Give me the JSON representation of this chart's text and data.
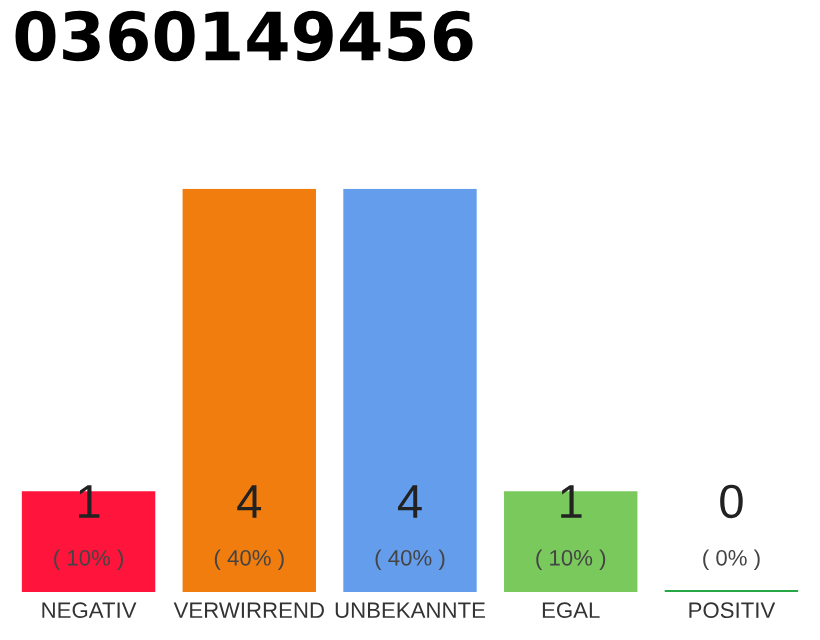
{
  "chart_data": {
    "type": "bar",
    "title": "0360149456",
    "categories": [
      "NEGATIV",
      "VERWIRREND",
      "UNBEKANNTE",
      "EGAL",
      "POSITIV"
    ],
    "values": [
      1,
      4,
      4,
      1,
      0
    ],
    "colors": [
      "#ff153c",
      "#f07d0e",
      "#659ded",
      "#7ac95d",
      "#28a745"
    ],
    "value_labels": [
      "1\n( 10% )",
      "4\n( 40% )",
      "4\n( 40% )",
      "1\n( 10% )",
      "0\n( 0% )"
    ],
    "grid": false,
    "legend": false
  }
}
